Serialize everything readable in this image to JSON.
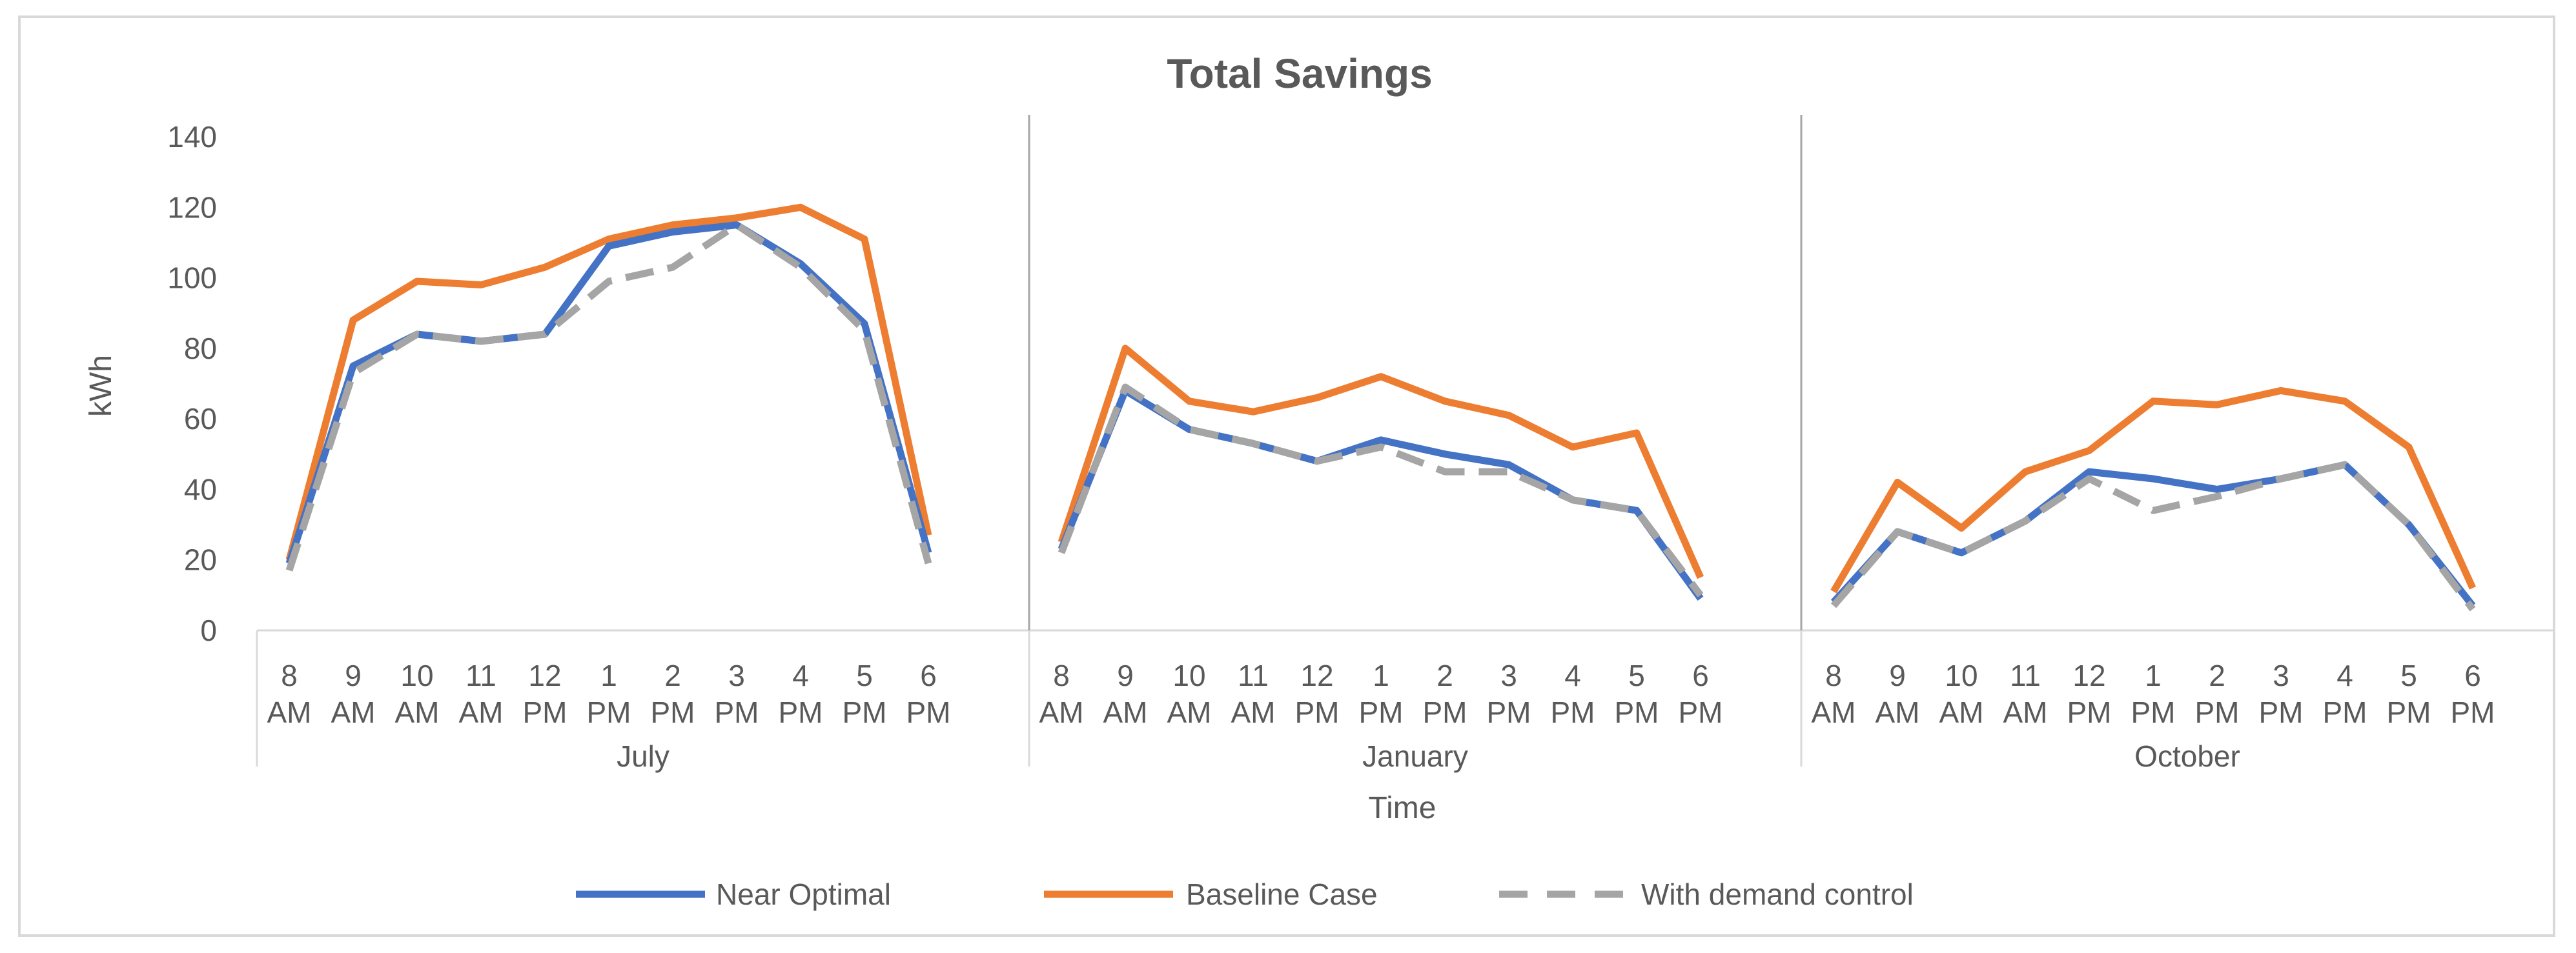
{
  "chart_data": {
    "type": "line",
    "title": "Total Savings",
    "xlabel": "Time",
    "ylabel": "kWh",
    "ylim": [
      0,
      140
    ],
    "yticks": [
      0,
      20,
      40,
      60,
      80,
      100,
      120,
      140
    ],
    "grid": false,
    "legend_position": "bottom",
    "groups": [
      "July",
      "January",
      "October"
    ],
    "hours": [
      [
        "8",
        "AM"
      ],
      [
        "9",
        "AM"
      ],
      [
        "10",
        "AM"
      ],
      [
        "11",
        "AM"
      ],
      [
        "12",
        "PM"
      ],
      [
        "1",
        "PM"
      ],
      [
        "2",
        "PM"
      ],
      [
        "3",
        "PM"
      ],
      [
        "4",
        "PM"
      ],
      [
        "5",
        "PM"
      ],
      [
        "6",
        "PM"
      ]
    ],
    "series": [
      {
        "name": "Near Optimal",
        "color": "#4472c4",
        "dash": "solid",
        "values": [
          [
            19,
            75,
            84,
            82,
            84,
            109,
            113,
            115,
            104,
            87,
            22
          ],
          [
            23,
            68,
            57,
            53,
            48,
            54,
            50,
            47,
            37,
            34,
            9
          ],
          [
            8,
            28,
            22,
            31,
            45,
            43,
            40,
            43,
            47,
            30,
            7
          ]
        ]
      },
      {
        "name": "Baseline Case",
        "color": "#ed7d31",
        "dash": "solid",
        "values": [
          [
            20,
            88,
            99,
            98,
            103,
            111,
            115,
            117,
            120,
            111,
            27
          ],
          [
            25,
            80,
            65,
            62,
            66,
            72,
            65,
            61,
            52,
            56,
            15
          ],
          [
            11,
            42,
            29,
            45,
            51,
            65,
            64,
            68,
            65,
            52,
            12
          ]
        ]
      },
      {
        "name": "With demand control",
        "color": "#a5a5a5",
        "dash": "dashed",
        "values": [
          [
            17,
            73,
            84,
            82,
            84,
            99,
            103,
            115,
            103,
            85,
            19
          ],
          [
            22,
            69,
            57,
            53,
            48,
            52,
            45,
            45,
            37,
            34,
            10
          ],
          [
            7,
            28,
            22,
            31,
            43,
            34,
            38,
            43,
            47,
            30,
            6
          ]
        ]
      }
    ]
  }
}
